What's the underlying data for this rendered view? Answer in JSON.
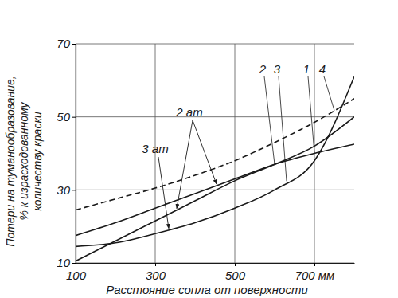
{
  "chart_data": {
    "type": "line",
    "ylabel": [
      "Потери на туманообразование,",
      "% к израсходованному",
      "количеству краски"
    ],
    "xlabel": "Расстояние сопла от поверхности",
    "x": [
      100,
      200,
      300,
      400,
      500,
      600,
      700,
      800
    ],
    "series": [
      {
        "name": "1",
        "color": "#1a1a1a",
        "line_style": "solid",
        "values": [
          17.5,
          21,
          25,
          29,
          33,
          37,
          40,
          42.5
        ]
      },
      {
        "name": "2",
        "color": "#1a1a1a",
        "line_style": "solid",
        "values": [
          10.5,
          16,
          21.5,
          27,
          32.5,
          37,
          42,
          50
        ]
      },
      {
        "name": "3",
        "color": "#1a1a1a",
        "line_style": "solid",
        "values": [
          14.5,
          15.5,
          18,
          21,
          25,
          30,
          38,
          61
        ]
      },
      {
        "name": "4",
        "color": "#1a1a1a",
        "line_style": "dashed",
        "values": [
          24.5,
          27.5,
          30.5,
          34,
          38,
          43,
          48.5,
          55
        ]
      }
    ],
    "annotations": [
      "2 ат",
      "3 ат"
    ],
    "xlim": [
      100,
      800
    ],
    "xticks": [
      100,
      300,
      500,
      {
        "value": 700,
        "label": "700 мм"
      }
    ],
    "ylim": [
      10,
      70
    ],
    "yticks": [
      10,
      30,
      50,
      70
    ],
    "grid": true
  }
}
